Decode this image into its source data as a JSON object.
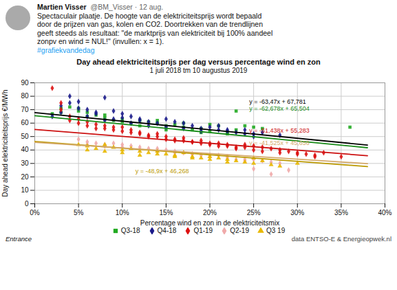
{
  "chart_data": {
    "type": "scatter",
    "title": "Day ahead elektriciteitsprijs per dag versus percentage wind en zon",
    "subtitle": "1 juli 2018 tm 10 augustus 2019",
    "xlabel": "Percentage wind en zon in de elektriciteitsmix",
    "ylabel": "Day ahead elektriciteitsprijs €/MWh",
    "xlim": [
      0,
      0.4
    ],
    "ylim": [
      0,
      90
    ],
    "xticks": [
      {
        "value": 0,
        "label": "0%"
      },
      {
        "value": 0.05,
        "label": "5%"
      },
      {
        "value": 0.1,
        "label": "10%"
      },
      {
        "value": 0.15,
        "label": "15%"
      },
      {
        "value": 0.2,
        "label": "20%"
      },
      {
        "value": 0.25,
        "label": "25%"
      },
      {
        "value": 0.3,
        "label": "30%"
      },
      {
        "value": 0.35,
        "label": "35%"
      },
      {
        "value": 0.4,
        "label": "40%"
      }
    ],
    "yticks": [
      0,
      10,
      20,
      30,
      40,
      50,
      60,
      70,
      80,
      90
    ],
    "grid": true,
    "series": [
      {
        "name": "Q3-18",
        "color": "#22aa22",
        "marker": "square",
        "x": [
          0.02,
          0.03,
          0.04,
          0.05,
          0.06,
          0.07,
          0.08,
          0.09,
          0.1,
          0.11,
          0.12,
          0.13,
          0.14,
          0.15,
          0.16,
          0.17,
          0.18,
          0.19,
          0.2,
          0.21,
          0.22,
          0.23,
          0.25,
          0.26,
          0.03,
          0.05,
          0.06,
          0.08,
          0.1,
          0.12,
          0.14,
          0.15,
          0.17,
          0.19,
          0.2,
          0.22,
          0.23,
          0.24,
          0.36
        ],
        "values": [
          67,
          71,
          72,
          69,
          65,
          66,
          64,
          62,
          63,
          60,
          62,
          61,
          60,
          58,
          59,
          57,
          55,
          56,
          54,
          58,
          53,
          69,
          57,
          56,
          68,
          71,
          68,
          66,
          61,
          58,
          62,
          55,
          60,
          53,
          59,
          52,
          55,
          58,
          57
        ]
      },
      {
        "name": "Q4-18",
        "color": "#1a1a8a",
        "marker": "diamond",
        "x": [
          0.02,
          0.03,
          0.04,
          0.05,
          0.06,
          0.07,
          0.08,
          0.09,
          0.1,
          0.11,
          0.12,
          0.13,
          0.14,
          0.15,
          0.16,
          0.17,
          0.18,
          0.19,
          0.2,
          0.21,
          0.22,
          0.23,
          0.24,
          0.25,
          0.03,
          0.04,
          0.05,
          0.06,
          0.07,
          0.08,
          0.09,
          0.1,
          0.11,
          0.12,
          0.13,
          0.15,
          0.17,
          0.19,
          0.21,
          0.22,
          0.24,
          0.25,
          0.26,
          0.28
        ],
        "values": [
          65,
          68,
          80,
          76,
          70,
          67,
          79,
          69,
          64,
          65,
          62,
          61,
          60,
          63,
          61,
          60,
          58,
          56,
          57,
          55,
          54,
          53,
          55,
          52,
          73,
          75,
          71,
          65,
          68,
          62,
          63,
          67,
          60,
          63,
          58,
          57,
          56,
          54,
          58,
          55,
          52,
          50,
          53,
          51
        ]
      },
      {
        "name": "Q1-19",
        "color": "#dd1111",
        "marker": "diamond",
        "x": [
          0.02,
          0.03,
          0.04,
          0.05,
          0.06,
          0.07,
          0.08,
          0.09,
          0.1,
          0.11,
          0.12,
          0.13,
          0.14,
          0.15,
          0.16,
          0.17,
          0.18,
          0.19,
          0.2,
          0.21,
          0.22,
          0.23,
          0.24,
          0.25,
          0.26,
          0.27,
          0.28,
          0.29,
          0.3,
          0.31,
          0.32,
          0.33,
          0.35,
          0.03,
          0.04,
          0.05,
          0.06,
          0.07,
          0.08,
          0.09,
          0.1,
          0.11,
          0.12,
          0.13,
          0.14,
          0.15,
          0.16,
          0.17,
          0.18,
          0.19,
          0.2,
          0.21,
          0.22,
          0.23,
          0.24,
          0.25,
          0.26,
          0.28,
          0.3,
          0.32
        ],
        "values": [
          86,
          75,
          62,
          60,
          58,
          56,
          58,
          55,
          57,
          53,
          52,
          51,
          50,
          50,
          48,
          47,
          46,
          45,
          44,
          45,
          43,
          42,
          44,
          43,
          42,
          41,
          40,
          39,
          38,
          37,
          36,
          38,
          35,
          70,
          65,
          63,
          61,
          59,
          56,
          57,
          54,
          55,
          53,
          50,
          52,
          48,
          47,
          49,
          46,
          47,
          45,
          43,
          44,
          41,
          42,
          40,
          39,
          38,
          37,
          35
        ]
      },
      {
        "name": "Q2-19",
        "color": "#f0aaaa",
        "marker": "diamond",
        "x": [
          0.05,
          0.06,
          0.07,
          0.08,
          0.09,
          0.1,
          0.11,
          0.12,
          0.13,
          0.14,
          0.15,
          0.16,
          0.17,
          0.18,
          0.19,
          0.2,
          0.21,
          0.22,
          0.23,
          0.24,
          0.25,
          0.26,
          0.27,
          0.28,
          0.06,
          0.08,
          0.1,
          0.12,
          0.14,
          0.16,
          0.18,
          0.2,
          0.22,
          0.24,
          0.25,
          0.27,
          0.29
        ],
        "values": [
          48,
          46,
          45,
          44,
          45,
          44,
          43,
          42,
          41,
          41,
          40,
          39,
          38,
          37,
          36,
          35,
          36,
          35,
          33,
          32,
          33,
          32,
          31,
          30,
          44,
          43,
          42,
          40,
          39,
          38,
          37,
          36,
          34,
          33,
          26,
          22,
          25
        ]
      },
      {
        "name": "Q3 19",
        "color": "#e8b800",
        "marker": "triangle",
        "x": [
          0.05,
          0.06,
          0.07,
          0.08,
          0.09,
          0.1,
          0.11,
          0.12,
          0.13,
          0.14,
          0.15,
          0.16,
          0.17,
          0.18,
          0.19,
          0.2,
          0.21,
          0.22,
          0.23,
          0.24,
          0.25,
          0.26,
          0.27,
          0.28,
          0.06,
          0.08,
          0.1,
          0.12,
          0.14,
          0.16,
          0.18,
          0.2,
          0.22,
          0.25,
          0.3
        ],
        "values": [
          44,
          43,
          41,
          44,
          42,
          40,
          41,
          39,
          38,
          39,
          37,
          36,
          38,
          35,
          34,
          35,
          34,
          33,
          32,
          31,
          30,
          32,
          29,
          28,
          40,
          39,
          38,
          36,
          37,
          35,
          34,
          33,
          31,
          34,
          30
        ]
      }
    ],
    "trendlines": [
      {
        "color": "#000000",
        "x": [
          0,
          0.38
        ],
        "values": [
          67.781,
          43.6624
        ]
      },
      {
        "color": "#1a8c1a",
        "x": [
          0,
          0.38
        ],
        "values": [
          65.504,
          41.68636
        ]
      },
      {
        "color": "#cc1111",
        "x": [
          0,
          0.38
        ],
        "values": [
          55.283,
          35.73656
        ]
      },
      {
        "color": "#bb9900",
        "x": [
          0,
          0.38
        ],
        "values": [
          46.268,
          27.686
        ]
      },
      {
        "color": "#d4a96a",
        "x": [
          0,
          0.38
        ],
        "values": [
          45.656,
          29.8765
        ]
      }
    ],
    "annotations": [
      {
        "text": "y = -63,47x + 67,781",
        "x": 0.245,
        "y": 74.5,
        "color": "#000000"
      },
      {
        "text": "y = -62,678x + 65,504",
        "x": 0.245,
        "y": 69.0,
        "color": "#1a8c1a"
      },
      {
        "text": "y = -51,438x + 55,283",
        "x": 0.245,
        "y": 53.0,
        "color": "#cc1111"
      },
      {
        "text": "y = -48,9x + 46,268",
        "x": 0.115,
        "y": 22.5,
        "color": "#bb9900"
      },
      {
        "text": "y = -41,525x + 45,656",
        "x": 0.245,
        "y": 43.5,
        "color": "#d4a96a"
      }
    ],
    "footer": [
      "Entrance",
      "data ENTSO-E & Energieopwek.nl"
    ],
    "tweet": {
      "name": "Martien Visser",
      "handle": "@BM_Visser · 12 aug.",
      "lines": [
        "Spectaculair plaatje. De hoogte van de elektriciteitsprijs wordt bepaald",
        "door de prijzen van gas, kolen en CO2. Doortrekken van de trendlijnen",
        "geeft steeds als resultaat: \"de marktprijs van elektriciteit bij 100% aandeel",
        "zonpv en wind = NUL!\"  (invullen: x = 1)."
      ],
      "hashtag": "#grafiekvandedag"
    }
  }
}
